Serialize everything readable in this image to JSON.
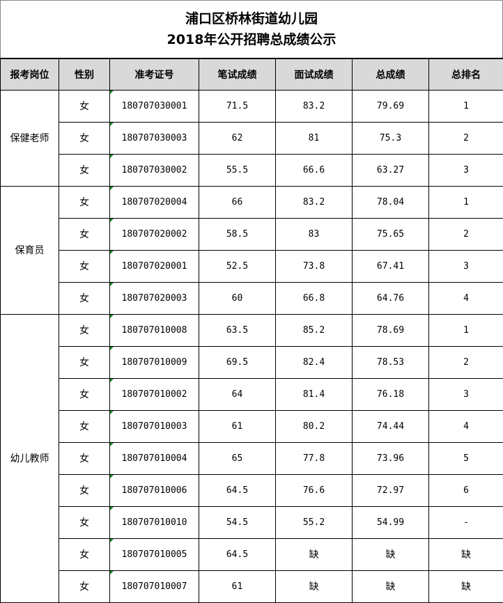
{
  "title": {
    "line1": "浦口区桥林街道幼儿园",
    "line2": "2018年公开招聘总成绩公示"
  },
  "columns": [
    "报考岗位",
    "性别",
    "准考证号",
    "笔试成绩",
    "面试成绩",
    "总成绩",
    "总排名"
  ],
  "groups": [
    {
      "position": "保健老师",
      "rows": [
        [
          "女",
          "180707030001",
          "71.5",
          "83.2",
          "79.69",
          "1"
        ],
        [
          "女",
          "180707030003",
          "62",
          "81",
          "75.3",
          "2"
        ],
        [
          "女",
          "180707030002",
          "55.5",
          "66.6",
          "63.27",
          "3"
        ]
      ]
    },
    {
      "position": "保育员",
      "rows": [
        [
          "女",
          "180707020004",
          "66",
          "83.2",
          "78.04",
          "1"
        ],
        [
          "女",
          "180707020002",
          "58.5",
          "83",
          "75.65",
          "2"
        ],
        [
          "女",
          "180707020001",
          "52.5",
          "73.8",
          "67.41",
          "3"
        ],
        [
          "女",
          "180707020003",
          "60",
          "66.8",
          "64.76",
          "4"
        ]
      ]
    },
    {
      "position": "幼儿教师",
      "rows": [
        [
          "女",
          "180707010008",
          "63.5",
          "85.2",
          "78.69",
          "1"
        ],
        [
          "女",
          "180707010009",
          "69.5",
          "82.4",
          "78.53",
          "2"
        ],
        [
          "女",
          "180707010002",
          "64",
          "81.4",
          "76.18",
          "3"
        ],
        [
          "女",
          "180707010003",
          "61",
          "80.2",
          "74.44",
          "4"
        ],
        [
          "女",
          "180707010004",
          "65",
          "77.8",
          "73.96",
          "5"
        ],
        [
          "女",
          "180707010006",
          "64.5",
          "76.6",
          "72.97",
          "6"
        ],
        [
          "女",
          "180707010010",
          "54.5",
          "55.2",
          "54.99",
          "-"
        ],
        [
          "女",
          "180707010005",
          "64.5",
          "缺",
          "缺",
          "缺"
        ],
        [
          "女",
          "180707010007",
          "61",
          "缺",
          "缺",
          "缺"
        ]
      ]
    }
  ]
}
